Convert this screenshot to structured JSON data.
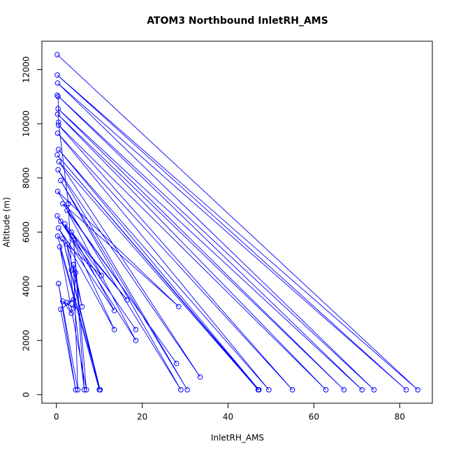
{
  "chart_data": {
    "type": "line",
    "title": "ATOM3 Northbound InletRH_AMS",
    "x_label": "InletRH_AMS",
    "y_label": "Altitude (m)",
    "xlim": [
      -3.37,
      87.6
    ],
    "ylim": [
      -315,
      13045
    ],
    "xticks": [
      0,
      20,
      40,
      60,
      80
    ],
    "yticks": [
      0,
      2000,
      4000,
      6000,
      8000,
      10000,
      12000
    ],
    "series": [
      {
        "color": "#0000ff",
        "x": [
          0.2,
          84.2,
          0.2,
          81.5,
          0.3,
          74,
          0.2,
          71.2,
          0.4,
          67,
          0.3,
          62.8,
          0.5,
          55,
          0.3,
          49.5,
          0.5,
          47.2,
          0.2,
          47,
          0.6,
          33.5,
          0.4,
          30.5,
          1,
          29,
          0.3,
          28.5,
          1.5,
          28,
          2.5,
          18.5,
          0.2,
          18.5,
          1,
          16.5,
          2,
          13.5,
          0.5,
          13.5,
          3.5,
          10.5,
          0.3,
          10.2,
          1.5,
          10,
          0.8,
          7,
          4,
          6.5,
          2.5,
          6,
          4,
          5,
          0.5,
          4.5,
          1,
          4,
          2.5,
          3.5,
          1.5,
          4,
          4.5,
          3.5,
          2.8,
          0.5,
          0.4
        ],
        "values": [
          12550,
          180,
          11800,
          180,
          11500,
          180,
          11050,
          180,
          10550,
          180,
          10350,
          180,
          9950,
          180,
          9650,
          180,
          9050,
          180,
          8850,
          180,
          8600,
          650,
          8300,
          180,
          7900,
          180,
          7500,
          3250,
          7050,
          1150,
          6800,
          2000,
          6600,
          2400,
          6400,
          3500,
          6300,
          2400,
          6150,
          3100,
          6000,
          4400,
          5850,
          180,
          5750,
          180,
          5450,
          180,
          5700,
          180,
          5550,
          3250,
          4800,
          180,
          4100,
          180,
          3150,
          3500,
          3400,
          3000,
          3450,
          3200,
          4500,
          4600,
          7050,
          10050,
          11000
        ]
      }
    ]
  }
}
